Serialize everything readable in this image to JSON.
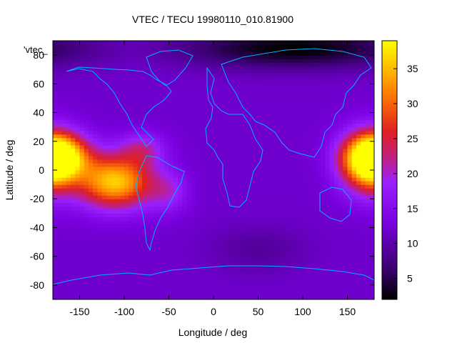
{
  "chart_data": {
    "type": "heatmap",
    "title": "VTEC / TECU 19980110_010.81900",
    "xlabel": "Longitude / deg",
    "ylabel": "Latitude / deg",
    "legend_key": "'vtec_",
    "xlim": [
      -180,
      180
    ],
    "ylim": [
      -90,
      90
    ],
    "xticks": [
      -150,
      -100,
      -50,
      0,
      50,
      100,
      150
    ],
    "yticks": [
      -80,
      -60,
      -40,
      -20,
      0,
      20,
      40,
      60,
      80
    ],
    "colorbar": {
      "range": [
        2,
        39
      ],
      "ticks": [
        5,
        10,
        15,
        20,
        25,
        30,
        35
      ],
      "palette": [
        "#000000",
        "#3a0070",
        "#7a00e0",
        "#9a20ff",
        "#c02080",
        "#e02020",
        "#ff8000",
        "#ffff00"
      ]
    },
    "enhancements": [
      {
        "lon": -175,
        "lat": 10,
        "sigma_lon": 25,
        "sigma_lat": 11,
        "amp": 24
      },
      {
        "lon": -110,
        "lat": -8,
        "sigma_lon": 30,
        "sigma_lat": 13,
        "amp": 24
      },
      {
        "lon": -80,
        "lat": 15,
        "sigma_lon": 18,
        "sigma_lat": 8,
        "amp": 8
      },
      {
        "lon": -50,
        "lat": -15,
        "sigma_lon": 15,
        "sigma_lat": 10,
        "amp": 6
      },
      {
        "lon": 175,
        "lat": 5,
        "sigma_lon": 22,
        "sigma_lat": 15,
        "amp": 22
      }
    ],
    "depletions": [
      {
        "lon": 90,
        "lat": 85,
        "sigma_lon": 90,
        "sigma_lat": 10,
        "amp": -10
      },
      {
        "lon": 50,
        "lat": -55,
        "sigma_lon": 40,
        "sigma_lat": 12,
        "amp": -3
      }
    ],
    "background_vtec": 12
  }
}
